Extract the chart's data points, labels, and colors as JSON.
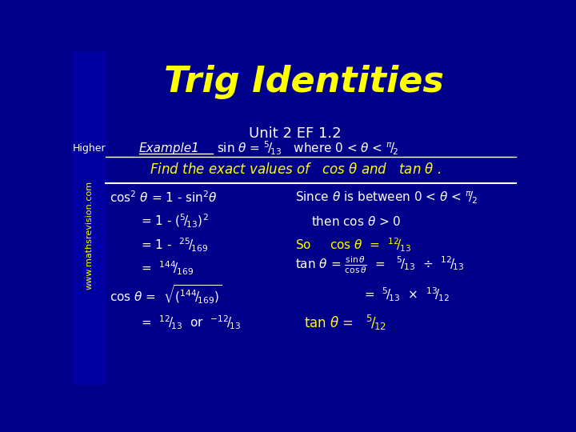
{
  "bg_color": "#00008B",
  "left_bar_color": "#0000a0",
  "title": "Trig Identities",
  "title_color": "#FFFF00",
  "title_fontsize": 32,
  "white_color": "#FFFFFF",
  "yellow_color": "#FFFF00",
  "higher_text": "Higher",
  "unit_text": "Unit 2 EF 1.2",
  "watermark": "www.mathsrevision.com"
}
